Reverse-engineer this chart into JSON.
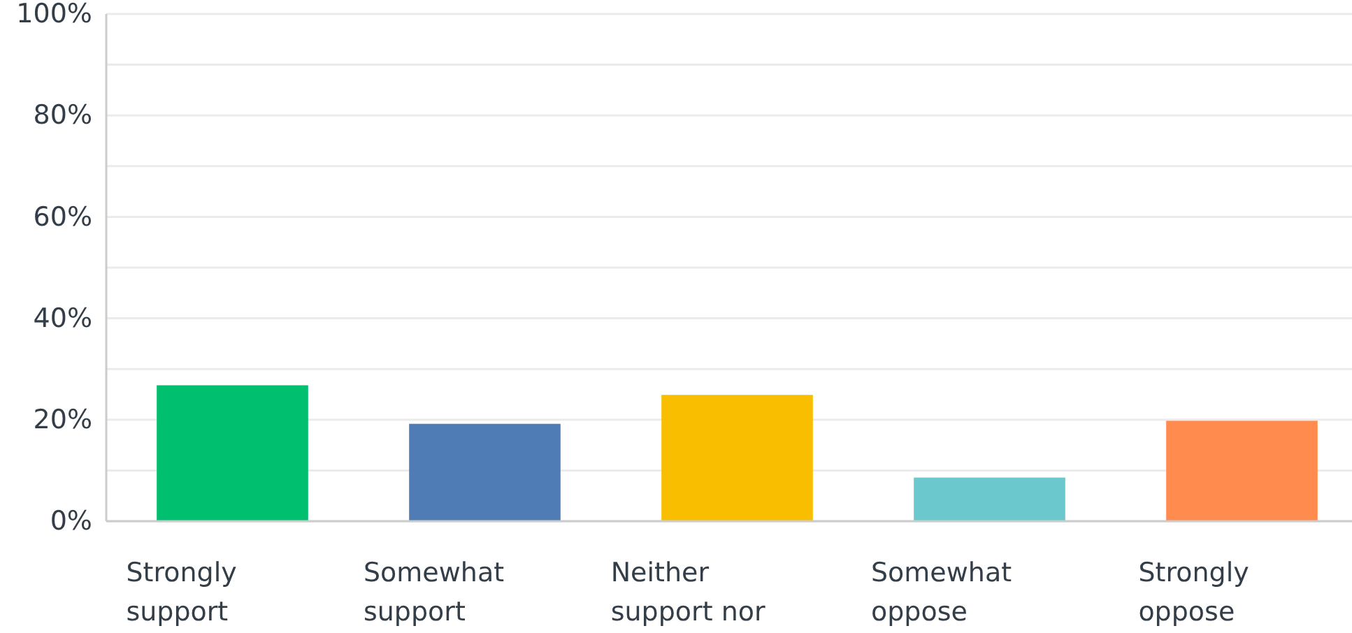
{
  "chart_data": {
    "type": "bar",
    "categories": [
      "Strongly support",
      "Somewhat support",
      "Neither support nor",
      "Somewhat oppose",
      "Strongly oppose"
    ],
    "values": [
      26.8,
      19.2,
      24.9,
      8.6,
      19.8
    ],
    "colors": [
      "#00bf6f",
      "#507cb6",
      "#f9be00",
      "#6bc8cd",
      "#ff8b4f"
    ],
    "ylim": [
      0,
      100
    ],
    "yticks": [
      {
        "value": 0,
        "label": "0%"
      },
      {
        "value": 10,
        "label": null
      },
      {
        "value": 20,
        "label": "20%"
      },
      {
        "value": 30,
        "label": null
      },
      {
        "value": 40,
        "label": "40%"
      },
      {
        "value": 50,
        "label": null
      },
      {
        "value": 60,
        "label": "60%"
      },
      {
        "value": 70,
        "label": null
      },
      {
        "value": 80,
        "label": "80%"
      },
      {
        "value": 90,
        "label": null
      },
      {
        "value": 100,
        "label": "100%"
      }
    ],
    "grid": true
  }
}
